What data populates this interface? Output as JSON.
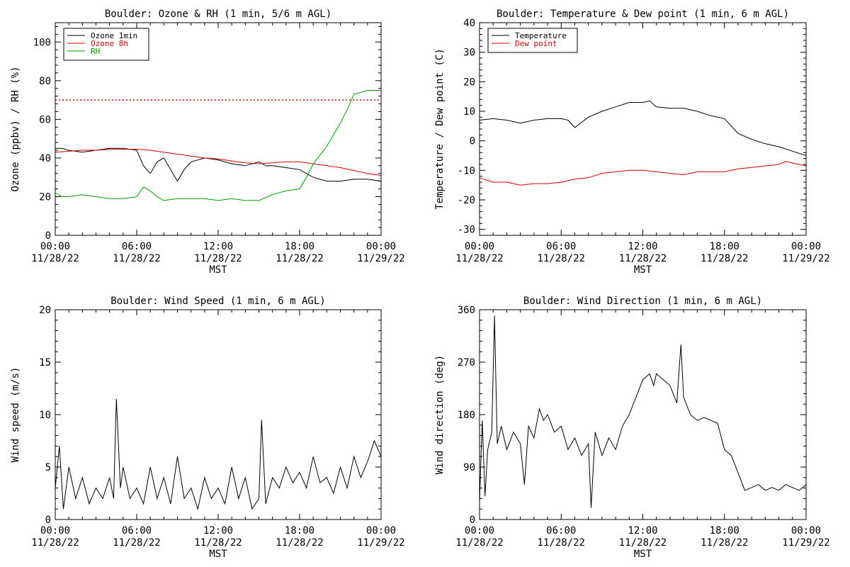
{
  "chart_data": [
    {
      "type": "line",
      "title": "Boulder: Ozone & RH (1 min, 5/6 m AGL)",
      "xlabel": "MST",
      "ylabel": "Ozone (ppbv) / RH (%)",
      "x_ticks": [
        {
          "hours": 0,
          "time": "00:00",
          "date": "11/28/22"
        },
        {
          "hours": 6,
          "time": "06:00",
          "date": "11/28/22"
        },
        {
          "hours": 12,
          "time": "12:00",
          "date": "11/28/22"
        },
        {
          "hours": 18,
          "time": "18:00",
          "date": "11/28/22"
        },
        {
          "hours": 24,
          "time": "00:00",
          "date": "11/29/22"
        }
      ],
      "xlim": [
        0,
        24
      ],
      "ylim": [
        0,
        110
      ],
      "yticks": [
        0,
        20,
        40,
        60,
        80,
        100
      ],
      "legend": "top-left",
      "grid": false,
      "reference_line": {
        "y": 70,
        "color": "#d40000",
        "style": "dotted"
      },
      "series": [
        {
          "name": "Ozone 1min",
          "color": "#000000",
          "x": [
            0,
            0.5,
            1,
            2,
            3,
            4,
            5,
            6,
            6.5,
            7,
            7.5,
            8,
            8.5,
            9,
            9.5,
            10,
            11,
            12,
            13,
            14,
            15,
            15.5,
            16,
            17,
            18,
            19,
            20,
            21,
            22,
            23,
            24
          ],
          "values": [
            45,
            45,
            44,
            43,
            44,
            45,
            45,
            44,
            36,
            32,
            38,
            40,
            34,
            28,
            34,
            38,
            40,
            39,
            37,
            36,
            38,
            36,
            36,
            35,
            34,
            30,
            28,
            28,
            29,
            29,
            28
          ]
        },
        {
          "name": "Ozone 8h",
          "color": "#d40000",
          "x": [
            0,
            1,
            2,
            3,
            4,
            5,
            6,
            7,
            8,
            9,
            10,
            11,
            12,
            13,
            14,
            15,
            16,
            17,
            18,
            19,
            20,
            21,
            22,
            23,
            24
          ],
          "values": [
            43,
            43.5,
            44,
            44,
            44.5,
            44.5,
            44.5,
            44,
            43,
            42,
            41,
            40,
            39.5,
            38.5,
            37.5,
            37,
            37.5,
            38,
            38,
            37,
            36,
            35,
            33.5,
            32,
            31
          ]
        },
        {
          "name": "RH",
          "color": "#009900",
          "x": [
            0,
            0.5,
            1,
            2,
            3,
            4,
            5,
            6,
            6.5,
            7,
            7.5,
            8,
            9,
            10,
            11,
            12,
            13,
            14,
            15,
            16,
            17,
            18,
            18.5,
            19,
            20,
            21,
            21.5,
            22,
            23,
            24
          ],
          "values": [
            22,
            20,
            20,
            21,
            20,
            19,
            19,
            20,
            25,
            23,
            20,
            18,
            19,
            19,
            19,
            18,
            19,
            18,
            18,
            21,
            23,
            24,
            30,
            37,
            46,
            58,
            65,
            73,
            75,
            75
          ]
        }
      ]
    },
    {
      "type": "line",
      "title": "Boulder: Temperature & Dew point (1 min, 6 m AGL)",
      "xlabel": "MST",
      "ylabel": "Temperature / Dew point (C)",
      "x_ticks": [
        {
          "hours": 0,
          "time": "00:00",
          "date": "11/28/22"
        },
        {
          "hours": 6,
          "time": "06:00",
          "date": "11/28/22"
        },
        {
          "hours": 12,
          "time": "12:00",
          "date": "11/28/22"
        },
        {
          "hours": 18,
          "time": "18:00",
          "date": "11/28/22"
        },
        {
          "hours": 24,
          "time": "00:00",
          "date": "11/29/22"
        }
      ],
      "xlim": [
        0,
        24
      ],
      "ylim": [
        -32,
        40
      ],
      "yticks": [
        -30,
        -20,
        -10,
        0,
        10,
        20,
        30,
        40
      ],
      "legend": "top-left",
      "grid": false,
      "series": [
        {
          "name": "Temperature",
          "color": "#000000",
          "x": [
            0,
            1,
            2,
            3,
            4,
            5,
            6,
            6.5,
            7,
            8,
            9,
            10,
            11,
            12,
            12.5,
            13,
            14,
            15,
            16,
            17,
            18,
            19,
            20,
            21,
            22,
            23,
            24
          ],
          "values": [
            7,
            7.5,
            7,
            6,
            7,
            7.5,
            7.5,
            7,
            4.5,
            8,
            10,
            11.5,
            13,
            13,
            13.5,
            11.5,
            11,
            11,
            10,
            8.5,
            7.5,
            2.5,
            0.5,
            -1,
            -2,
            -3.5,
            -5
          ]
        },
        {
          "name": "Dew point",
          "color": "#d40000",
          "x": [
            0,
            1,
            2,
            3,
            4,
            5,
            6,
            7,
            8,
            9,
            10,
            11,
            12,
            13,
            14,
            15,
            16,
            17,
            18,
            19,
            20,
            21,
            22,
            22.5,
            23,
            24
          ],
          "values": [
            -12.5,
            -14,
            -14,
            -15,
            -14.5,
            -14.5,
            -14,
            -13,
            -12.5,
            -11,
            -10.5,
            -10,
            -10,
            -10.5,
            -11,
            -11.5,
            -10.5,
            -10.5,
            -10.5,
            -9.5,
            -9,
            -8.5,
            -8,
            -7,
            -7.5,
            -8.5
          ]
        }
      ]
    },
    {
      "type": "line",
      "title": "Boulder: Wind Speed (1 min, 6 m AGL)",
      "xlabel": "MST",
      "ylabel": "Wind speed (m/s)",
      "x_ticks": [
        {
          "hours": 0,
          "time": "00:00",
          "date": "11/28/22"
        },
        {
          "hours": 6,
          "time": "06:00",
          "date": "11/28/22"
        },
        {
          "hours": 12,
          "time": "12:00",
          "date": "11/28/22"
        },
        {
          "hours": 18,
          "time": "18:00",
          "date": "11/28/22"
        },
        {
          "hours": 24,
          "time": "00:00",
          "date": "11/29/22"
        }
      ],
      "xlim": [
        0,
        24
      ],
      "ylim": [
        0,
        20
      ],
      "yticks": [
        0,
        5,
        10,
        15,
        20
      ],
      "legend": "none",
      "grid": false,
      "series": [
        {
          "color": "#000000",
          "x": [
            0,
            0.3,
            0.6,
            1,
            1.5,
            2,
            2.5,
            3,
            3.5,
            4,
            4.3,
            4.5,
            4.8,
            5,
            5.5,
            6,
            6.5,
            7,
            7.5,
            8,
            8.5,
            9,
            9.5,
            10,
            10.5,
            11,
            11.5,
            12,
            12.5,
            13,
            13.5,
            14,
            14.5,
            15,
            15.2,
            15.5,
            16,
            16.5,
            17,
            17.5,
            18,
            18.5,
            19,
            19.5,
            20,
            20.5,
            21,
            21.5,
            22,
            22.5,
            23,
            23.5,
            24
          ],
          "values": [
            3,
            7,
            1,
            5,
            2,
            4,
            1.5,
            3,
            2,
            4,
            2,
            11.5,
            3,
            5,
            2,
            3,
            1.5,
            5,
            2,
            4,
            1.5,
            6,
            2,
            3,
            1,
            4,
            2,
            3,
            1.5,
            5,
            2,
            4,
            1,
            2,
            9.5,
            1.5,
            4,
            3,
            5,
            3.5,
            4.5,
            3,
            6,
            3.5,
            4,
            2.5,
            5,
            3,
            6,
            4,
            5.5,
            7.5,
            6
          ]
        }
      ]
    },
    {
      "type": "line",
      "title": "Boulder: Wind Direction (1 min, 6 m AGL)",
      "xlabel": "MST",
      "ylabel": "Wind direction (deg)",
      "x_ticks": [
        {
          "hours": 0,
          "time": "00:00",
          "date": "11/28/22"
        },
        {
          "hours": 6,
          "time": "06:00",
          "date": "11/28/22"
        },
        {
          "hours": 12,
          "time": "12:00",
          "date": "11/28/22"
        },
        {
          "hours": 18,
          "time": "18:00",
          "date": "11/28/22"
        },
        {
          "hours": 24,
          "time": "00:00",
          "date": "11/29/22"
        }
      ],
      "xlim": [
        0,
        24
      ],
      "ylim": [
        0,
        360
      ],
      "yticks": [
        0,
        90,
        180,
        270,
        360
      ],
      "legend": "none",
      "grid": false,
      "series": [
        {
          "color": "#000000",
          "x": [
            0,
            0.2,
            0.4,
            0.6,
            0.9,
            1.1,
            1.3,
            1.6,
            2,
            2.5,
            3,
            3.3,
            3.6,
            4,
            4.4,
            4.7,
            5,
            5.5,
            6,
            6.5,
            7,
            7.5,
            8,
            8.2,
            8.5,
            9,
            9.5,
            10,
            10.5,
            11,
            11.5,
            12,
            12.5,
            12.8,
            13,
            13.5,
            14,
            14.5,
            14.8,
            15,
            15.5,
            16,
            16.5,
            17,
            17.5,
            18,
            18.5,
            19,
            19.5,
            20,
            20.5,
            21,
            21.5,
            22,
            22.5,
            23,
            23.5,
            24
          ],
          "values": [
            30,
            170,
            40,
            120,
            150,
            350,
            130,
            160,
            120,
            150,
            130,
            60,
            160,
            140,
            190,
            170,
            180,
            150,
            160,
            120,
            140,
            110,
            130,
            20,
            150,
            110,
            140,
            120,
            160,
            180,
            210,
            240,
            250,
            230,
            250,
            240,
            230,
            200,
            300,
            210,
            180,
            170,
            175,
            170,
            165,
            120,
            110,
            80,
            50,
            55,
            60,
            50,
            55,
            50,
            60,
            55,
            50,
            60
          ]
        }
      ]
    }
  ]
}
